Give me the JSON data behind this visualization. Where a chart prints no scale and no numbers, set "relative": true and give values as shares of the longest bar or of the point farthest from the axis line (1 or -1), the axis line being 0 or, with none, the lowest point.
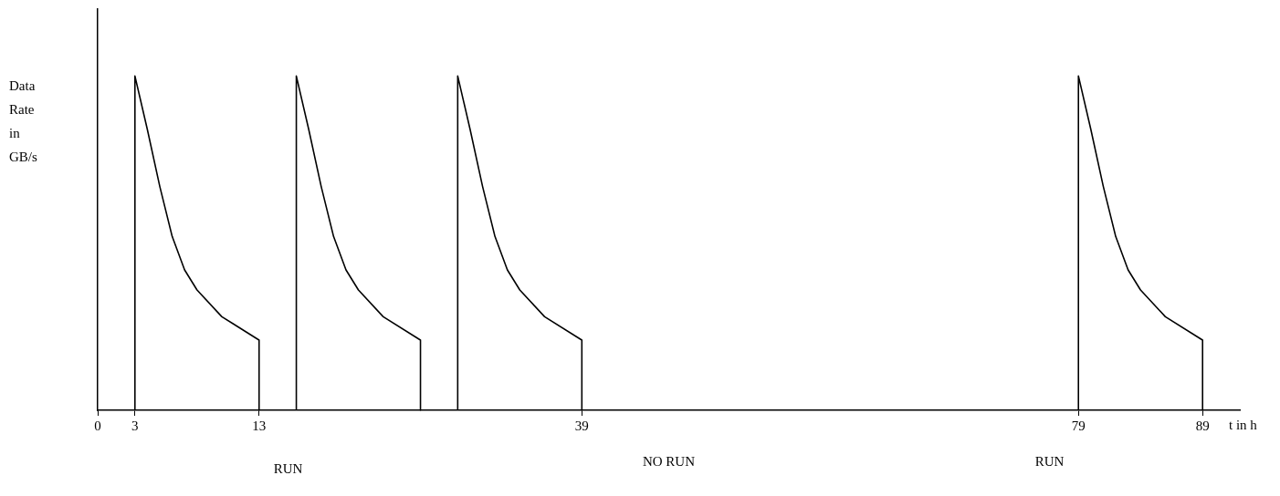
{
  "chart_data": {
    "type": "line",
    "relative": true,
    "xlabel": "t in h",
    "ylabel": "Data Rate in GB/s",
    "xlim": [
      0,
      92
    ],
    "xticks": [
      0,
      3,
      13,
      39,
      79,
      89
    ],
    "grid": false,
    "legend": false,
    "marker": "none",
    "line_style": "solid",
    "series": [
      {
        "color": "#000000",
        "x": [
          3,
          3,
          4,
          5,
          6,
          7,
          8,
          10,
          13,
          13
        ],
        "values": [
          0,
          1,
          0.84,
          0.67,
          0.52,
          0.42,
          0.36,
          0.28,
          0.21,
          0
        ]
      },
      {
        "color": "#000000",
        "x": [
          16,
          16,
          17,
          18,
          19,
          20,
          21,
          23,
          26,
          26
        ],
        "values": [
          0,
          1,
          0.84,
          0.67,
          0.52,
          0.42,
          0.36,
          0.28,
          0.21,
          0
        ]
      },
      {
        "color": "#000000",
        "x": [
          29,
          29,
          30,
          31,
          32,
          33,
          34,
          36,
          39,
          39
        ],
        "values": [
          0,
          1,
          0.84,
          0.67,
          0.52,
          0.42,
          0.36,
          0.28,
          0.21,
          0
        ]
      },
      {
        "color": "#000000",
        "x": [
          79,
          79,
          80,
          81,
          82,
          83,
          84,
          86,
          89,
          89
        ],
        "values": [
          0,
          1,
          0.84,
          0.67,
          0.52,
          0.42,
          0.36,
          0.28,
          0.21,
          0
        ]
      }
    ],
    "annotations": [
      "RUN",
      "NO RUN",
      "RUN"
    ]
  }
}
